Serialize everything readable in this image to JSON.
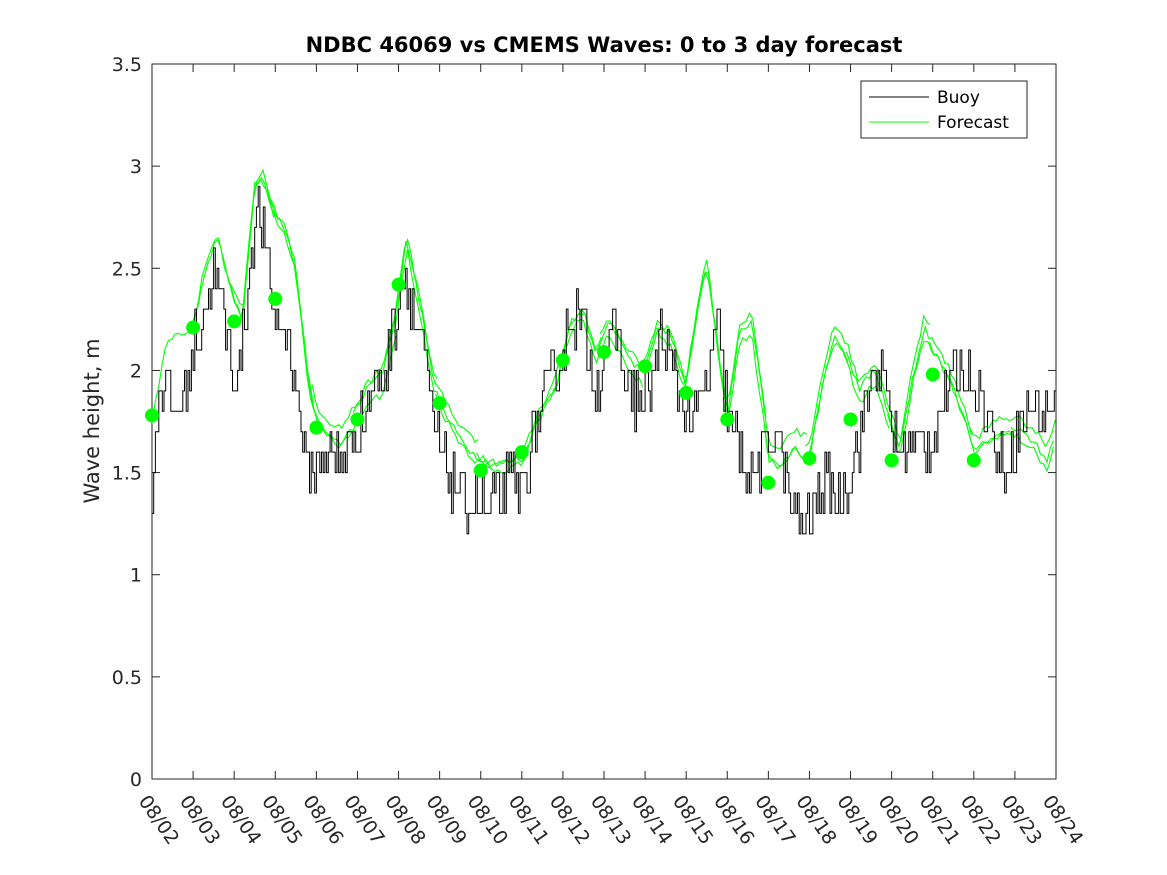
{
  "chart_data": {
    "type": "line",
    "title": "NDBC 46069 vs CMEMS Waves: 0 to 3 day forecast",
    "xlabel": "",
    "ylabel": "Wave height, m",
    "ylim": [
      0,
      3.5
    ],
    "yticks": [
      "0",
      "0.5",
      "1",
      "1.5",
      "2",
      "2.5",
      "3",
      "3.5"
    ],
    "xticks": [
      "08/02",
      "08/03",
      "08/04",
      "08/05",
      "08/06",
      "08/07",
      "08/08",
      "08/09",
      "08/10",
      "08/11",
      "08/12",
      "08/13",
      "08/14",
      "08/15",
      "08/16",
      "08/17",
      "08/18",
      "08/19",
      "08/20",
      "08/21",
      "08/22",
      "08/23",
      "08/24"
    ],
    "legend": {
      "position": "top-right",
      "entries": [
        "Buoy",
        "Forecast"
      ]
    },
    "colors": {
      "buoy": "#000000",
      "forecast": "#00ff00"
    },
    "buoy_profile": [
      [
        0,
        1.45
      ],
      [
        0.2,
        1.95
      ],
      [
        0.5,
        1.8
      ],
      [
        0.8,
        1.85
      ],
      [
        1.0,
        2.1
      ],
      [
        1.3,
        2.3
      ],
      [
        1.5,
        2.5
      ],
      [
        1.8,
        2.2
      ],
      [
        2.0,
        1.95
      ],
      [
        2.2,
        2.1
      ],
      [
        2.4,
        2.6
      ],
      [
        2.6,
        2.8
      ],
      [
        2.8,
        2.5
      ],
      [
        3.0,
        2.25
      ],
      [
        3.2,
        2.2
      ],
      [
        3.4,
        2.1
      ],
      [
        3.6,
        1.75
      ],
      [
        3.8,
        1.5
      ],
      [
        4.0,
        1.55
      ],
      [
        4.3,
        1.6
      ],
      [
        4.6,
        1.55
      ],
      [
        5.0,
        1.7
      ],
      [
        5.3,
        1.9
      ],
      [
        5.6,
        1.95
      ],
      [
        5.8,
        2.1
      ],
      [
        6.0,
        2.35
      ],
      [
        6.2,
        2.45
      ],
      [
        6.4,
        2.25
      ],
      [
        6.6,
        2.1
      ],
      [
        6.8,
        1.75
      ],
      [
        7.0,
        1.6
      ],
      [
        7.3,
        1.45
      ],
      [
        7.6,
        1.35
      ],
      [
        8.0,
        1.35
      ],
      [
        8.2,
        1.3
      ],
      [
        8.5,
        1.4
      ],
      [
        8.8,
        1.45
      ],
      [
        9.0,
        1.4
      ],
      [
        9.3,
        1.7
      ],
      [
        9.6,
        1.9
      ],
      [
        9.8,
        2.0
      ],
      [
        10.0,
        2.1
      ],
      [
        10.2,
        2.3
      ],
      [
        10.5,
        2.2
      ],
      [
        10.8,
        1.9
      ],
      [
        11.0,
        2.1
      ],
      [
        11.3,
        2.2
      ],
      [
        11.6,
        1.9
      ],
      [
        12.0,
        1.85
      ],
      [
        12.2,
        2.0
      ],
      [
        12.4,
        2.2
      ],
      [
        12.6,
        2.0
      ],
      [
        12.9,
        1.85
      ],
      [
        13.2,
        1.75
      ],
      [
        13.5,
        1.95
      ],
      [
        13.8,
        2.2
      ],
      [
        14.0,
        1.8
      ],
      [
        14.3,
        1.6
      ],
      [
        14.6,
        1.45
      ],
      [
        14.9,
        1.6
      ],
      [
        15.2,
        1.75
      ],
      [
        15.5,
        1.35
      ],
      [
        15.8,
        1.25
      ],
      [
        16.1,
        1.3
      ],
      [
        16.4,
        1.45
      ],
      [
        16.7,
        1.4
      ],
      [
        17.0,
        1.5
      ],
      [
        17.3,
        1.75
      ],
      [
        17.6,
        2.05
      ],
      [
        17.9,
        1.85
      ],
      [
        18.2,
        1.6
      ],
      [
        18.5,
        1.65
      ],
      [
        18.8,
        1.6
      ],
      [
        19.0,
        1.7
      ],
      [
        19.3,
        1.85
      ],
      [
        19.6,
        2.0
      ],
      [
        19.9,
        2.0
      ],
      [
        20.1,
        1.9
      ],
      [
        20.4,
        1.75
      ],
      [
        20.7,
        1.5
      ],
      [
        21.0,
        1.65
      ],
      [
        21.3,
        1.8
      ],
      [
        21.6,
        1.8
      ],
      [
        21.9,
        1.85
      ],
      [
        22.0,
        1.85
      ]
    ],
    "forecast_markers": [
      [
        0,
        1.78
      ],
      [
        1,
        2.21
      ],
      [
        2,
        2.24
      ],
      [
        3,
        2.35
      ],
      [
        4,
        1.72
      ],
      [
        5,
        1.76
      ],
      [
        6,
        2.42
      ],
      [
        7,
        1.84
      ],
      [
        8,
        1.51
      ],
      [
        9,
        1.6
      ],
      [
        10,
        2.05
      ],
      [
        11,
        2.09
      ],
      [
        12,
        2.02
      ],
      [
        13,
        1.89
      ],
      [
        14,
        1.76
      ],
      [
        15,
        1.45
      ],
      [
        16,
        1.57
      ],
      [
        17,
        1.76
      ],
      [
        18,
        1.56
      ],
      [
        19,
        1.98
      ],
      [
        20,
        1.56
      ]
    ],
    "forecast_profile": [
      [
        0,
        1.75
      ],
      [
        0.3,
        2.15
      ],
      [
        0.6,
        2.2
      ],
      [
        1.0,
        2.25
      ],
      [
        1.3,
        2.55
      ],
      [
        1.6,
        2.7
      ],
      [
        1.9,
        2.45
      ],
      [
        2.2,
        2.3
      ],
      [
        2.5,
        2.95
      ],
      [
        2.7,
        3.0
      ],
      [
        3.0,
        2.8
      ],
      [
        3.2,
        2.75
      ],
      [
        3.5,
        2.55
      ],
      [
        3.8,
        2.0
      ],
      [
        4.0,
        1.8
      ],
      [
        4.3,
        1.72
      ],
      [
        4.6,
        1.68
      ],
      [
        5.0,
        1.8
      ],
      [
        5.3,
        1.9
      ],
      [
        5.6,
        1.95
      ],
      [
        5.9,
        2.2
      ],
      [
        6.2,
        2.6
      ],
      [
        6.5,
        2.3
      ],
      [
        6.8,
        1.95
      ],
      [
        7.1,
        1.8
      ],
      [
        7.4,
        1.7
      ],
      [
        7.8,
        1.6
      ],
      [
        8.2,
        1.55
      ],
      [
        8.6,
        1.55
      ],
      [
        9.0,
        1.58
      ],
      [
        9.4,
        1.8
      ],
      [
        9.8,
        1.95
      ],
      [
        10.2,
        2.25
      ],
      [
        10.5,
        2.3
      ],
      [
        10.8,
        2.1
      ],
      [
        11.1,
        2.25
      ],
      [
        11.4,
        2.15
      ],
      [
        11.7,
        2.05
      ],
      [
        12.0,
        2.0
      ],
      [
        12.3,
        2.2
      ],
      [
        12.6,
        2.15
      ],
      [
        13.0,
        1.9
      ],
      [
        13.3,
        2.3
      ],
      [
        13.5,
        2.5
      ],
      [
        13.8,
        2.0
      ],
      [
        14.0,
        1.75
      ],
      [
        14.3,
        2.15
      ],
      [
        14.6,
        2.2
      ],
      [
        15.0,
        1.6
      ],
      [
        15.3,
        1.55
      ],
      [
        15.6,
        1.65
      ],
      [
        16.0,
        1.6
      ],
      [
        16.3,
        1.95
      ],
      [
        16.6,
        2.2
      ],
      [
        16.9,
        2.1
      ],
      [
        17.2,
        1.9
      ],
      [
        17.6,
        2.0
      ],
      [
        17.9,
        1.8
      ],
      [
        18.2,
        1.6
      ],
      [
        18.5,
        1.95
      ],
      [
        18.8,
        2.2
      ],
      [
        19.1,
        2.1
      ],
      [
        19.4,
        2.0
      ],
      [
        19.7,
        1.85
      ],
      [
        20.0,
        1.65
      ],
      [
        20.3,
        1.7
      ],
      [
        20.6,
        1.75
      ],
      [
        21.0,
        1.75
      ],
      [
        21.4,
        1.7
      ],
      [
        21.8,
        1.6
      ],
      [
        22.0,
        1.75
      ]
    ]
  }
}
